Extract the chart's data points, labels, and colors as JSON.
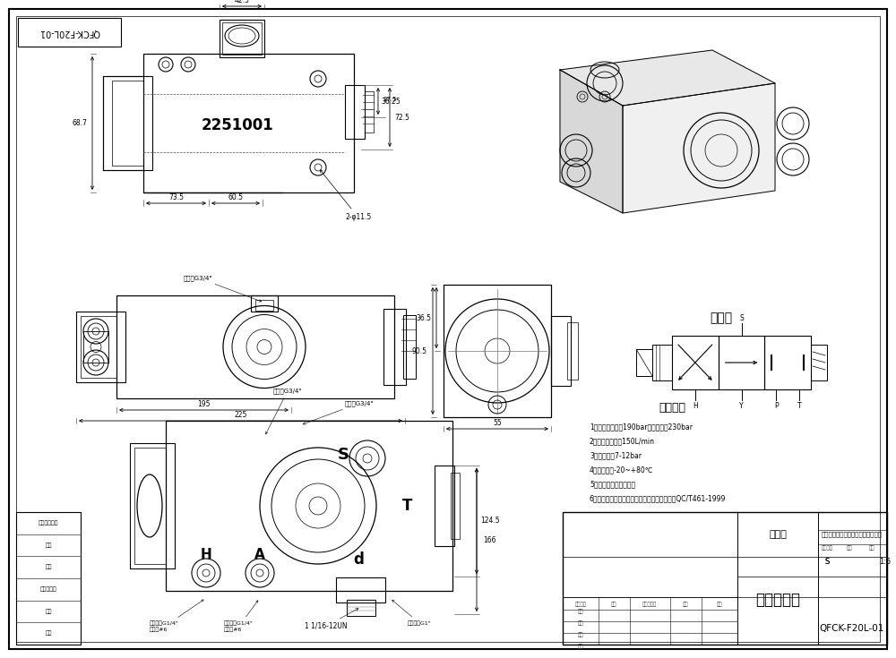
{
  "drawing_number": "QFCK-F20L-01",
  "bg_color": "#ffffff",
  "line_color": "#000000",
  "part_name_cn": "液压换向阀",
  "part_type_cn": "组合件",
  "company_cn": "常州市武进安祥液压件制造有限公司",
  "tech_params_title": "技术参数",
  "tech_params": [
    "1压力：额定压力190bar，最大压力230bar",
    "2流量：最大流量150L/min",
    "3控制气压：7-12bar",
    "4工作温度：-20~+80℃",
    "5工作介质：抗磨液压油",
    "6产品执行标准：《自卸汽车换向阀技术条件》QC/T461-1999"
  ],
  "schema_title": "原理图",
  "label_2251001": "2251001",
  "left_panel_labels": [
    "管道用件规范",
    "描图",
    "校量",
    "标高图号号",
    "签字",
    "日期"
  ]
}
